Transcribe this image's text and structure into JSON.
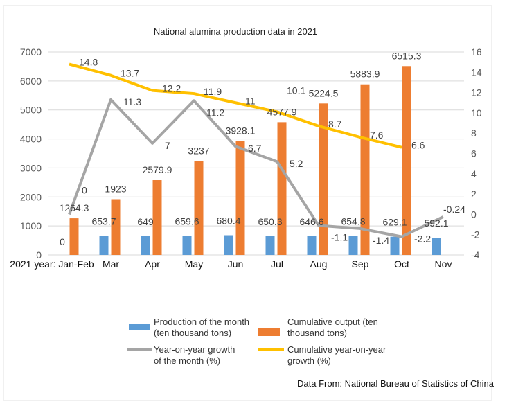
{
  "chart_data": {
    "type": "bar",
    "title": "National alumina production data in 2021",
    "categories": [
      "2021 year: Jan-Feb",
      "Mar",
      "Apr",
      "May",
      "Jun",
      "Jul",
      "Aug",
      "Sep",
      "Oct",
      "Nov"
    ],
    "y_left": {
      "range": [
        0,
        7000
      ],
      "ticks": [
        "0",
        "1000",
        "2000",
        "3000",
        "4000",
        "5000",
        "6000",
        "7000"
      ]
    },
    "y_right": {
      "range": [
        -4,
        16
      ],
      "ticks": [
        "-4",
        "-2",
        "0",
        "2",
        "4",
        "6",
        "8",
        "10",
        "12",
        "14",
        "16"
      ]
    },
    "grid": true,
    "legend_position": "bottom",
    "series": [
      {
        "name": "Production of the month (ten thousand tons)",
        "type": "bar",
        "axis": "left",
        "color": "#5b9bd5",
        "values": [
          0,
          653.7,
          649,
          659.6,
          680.4,
          650.3,
          646.6,
          654.8,
          629.1,
          592.1
        ],
        "labels": [
          "0",
          "653.7",
          "649",
          "659.6",
          "680.4",
          "650.3",
          "646.6",
          "654.8",
          "629.1",
          "592.1"
        ]
      },
      {
        "name": "Cumulative output (ten thousand tons)",
        "type": "bar",
        "axis": "left",
        "color": "#ed7d31",
        "values": [
          1264.3,
          1923,
          2579.9,
          3237,
          3928.1,
          4577.9,
          5224.5,
          5883.9,
          6515.3,
          null
        ],
        "labels": [
          "1264.3",
          "1923",
          "2579.9",
          "3237",
          "3928.1",
          "4577.9",
          "5224.5",
          "5883.9",
          "6515.3",
          ""
        ]
      },
      {
        "name": "Year-on-year growth of the month (%)",
        "type": "line",
        "axis": "right",
        "color": "#a5a5a5",
        "values": [
          0,
          11.3,
          7,
          11.2,
          6.7,
          5.2,
          -1.1,
          -1.4,
          -2.2,
          -0.24
        ],
        "labels": [
          "0",
          "11.3",
          "7",
          "11.2",
          "6.7",
          "5.2",
          "-1.1",
          "-1.4",
          "-2.2",
          "-0.24"
        ]
      },
      {
        "name": "Cumulative year-on-year growth (%)",
        "type": "line",
        "axis": "right",
        "color": "#ffc000",
        "values": [
          14.8,
          13.7,
          12.2,
          11.9,
          11,
          10.1,
          8.7,
          7.6,
          6.6,
          null
        ],
        "labels": [
          "14.8",
          "13.7",
          "12.2",
          "11.9",
          "11",
          "10.1",
          "8.7",
          "7.6",
          "6.6",
          ""
        ]
      }
    ]
  },
  "legend": [
    {
      "line1": "Production of the month",
      "line2": "(ten thousand tons)"
    },
    {
      "line1": "Cumulative output (ten",
      "line2": "thousand tons)"
    },
    {
      "line1": "Year-on-year growth",
      "line2": "of the month (%)"
    },
    {
      "line1": "Cumulative year-on-year",
      "line2": "growth (%)"
    }
  ],
  "source": "Data From: National Bureau of Statistics of China"
}
